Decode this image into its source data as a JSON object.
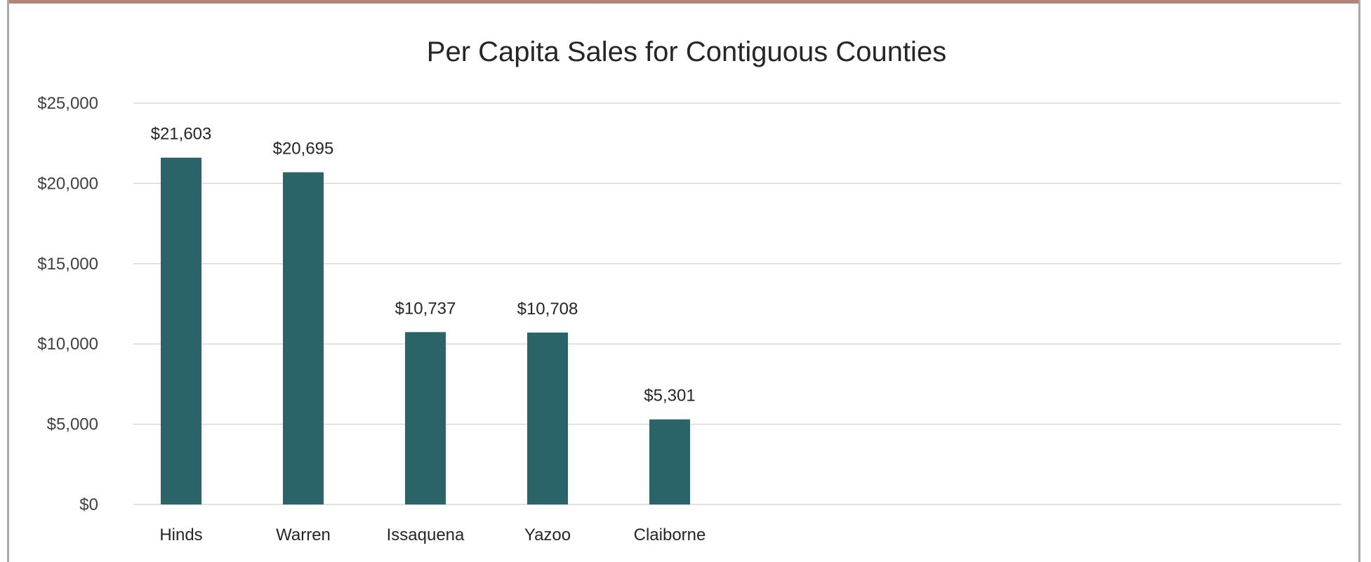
{
  "chart_data": {
    "type": "bar",
    "title": "Per Capita Sales for Contiguous Counties",
    "xlabel": "",
    "ylabel": "",
    "categories": [
      "Hinds",
      "Warren",
      "Issaquena",
      "Yazoo",
      "Claiborne"
    ],
    "values": [
      21603,
      20695,
      10737,
      10708,
      5301
    ],
    "data_labels": [
      "$21,603",
      "$20,695",
      "$10,737",
      "$10,708",
      "$5,301"
    ],
    "ylim": [
      0,
      25000
    ],
    "y_ticks": [
      0,
      5000,
      10000,
      15000,
      20000,
      25000
    ],
    "y_tick_labels": [
      "$0",
      "$5,000",
      "$10,000",
      "$15,000",
      "$20,000",
      "$25,000"
    ],
    "grid": true,
    "legend": "none",
    "bar_color": "#2a6368"
  }
}
